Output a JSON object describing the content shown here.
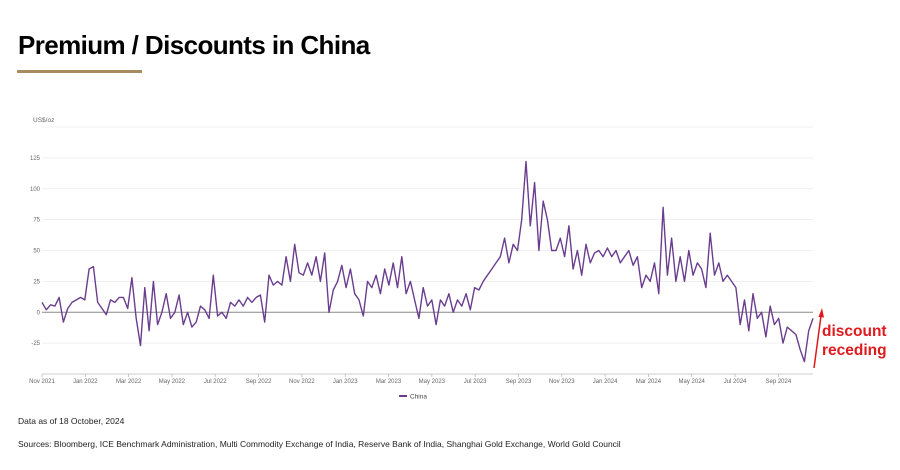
{
  "title": "Premium / Discounts in China",
  "chart_data": {
    "type": "line",
    "title": "Premium / Discounts in China",
    "ylabel": "US$/oz",
    "xlabel": "",
    "ylim": [
      -50,
      150
    ],
    "yticks": [
      -25,
      0,
      25,
      50,
      75,
      100,
      125
    ],
    "ytick_labels": [
      "-25",
      "0",
      "25",
      "50",
      "75",
      "100",
      "125"
    ],
    "xtick_labels": [
      "Nov 2021",
      "Jan 2022",
      "Mar 2022",
      "May 2022",
      "Jul 2022",
      "Sep 2022",
      "Nov 2022",
      "Jan 2023",
      "Mar 2023",
      "May 2023",
      "Jul 2023",
      "Sep 2023",
      "Nov 2023",
      "Jan 2024",
      "Mar 2024",
      "May 2024",
      "Jul 2024",
      "Sep 2024"
    ],
    "x_range_months_from_nov_2021": [
      0,
      35.6
    ],
    "grid": true,
    "legend": "bottom-center",
    "series": [
      {
        "name": "China",
        "color": "#6a3d8f",
        "values": [
          8,
          2,
          6,
          5,
          12,
          -8,
          3,
          8,
          10,
          12,
          10,
          35,
          37,
          8,
          3,
          -2,
          10,
          8,
          12,
          12,
          3,
          28,
          -5,
          -27,
          20,
          -15,
          25,
          -10,
          0,
          15,
          -5,
          0,
          14,
          -10,
          0,
          -12,
          -8,
          5,
          2,
          -5,
          30,
          -3,
          0,
          -5,
          8,
          5,
          10,
          5,
          12,
          8,
          12,
          14,
          -8,
          30,
          22,
          25,
          22,
          45,
          25,
          55,
          32,
          30,
          40,
          30,
          45,
          25,
          48,
          0,
          18,
          25,
          38,
          20,
          35,
          15,
          10,
          -3,
          25,
          20,
          30,
          15,
          35,
          22,
          40,
          20,
          45,
          15,
          25,
          10,
          -5,
          20,
          5,
          10,
          -10,
          10,
          5,
          15,
          0,
          10,
          5,
          15,
          2,
          20,
          18,
          25,
          30,
          35,
          40,
          45,
          60,
          40,
          55,
          50,
          75,
          122,
          70,
          105,
          50,
          90,
          75,
          50,
          50,
          60,
          45,
          70,
          35,
          50,
          30,
          55,
          40,
          48,
          50,
          45,
          52,
          45,
          50,
          40,
          45,
          50,
          38,
          45,
          20,
          30,
          25,
          40,
          15,
          85,
          30,
          60,
          25,
          45,
          25,
          50,
          30,
          40,
          35,
          20,
          64,
          30,
          40,
          25,
          30,
          25,
          20,
          -10,
          10,
          -15,
          15,
          -5,
          0,
          -20,
          5,
          -10,
          -5,
          -25,
          -12,
          -15,
          -18,
          -30,
          -40,
          -15,
          -5
        ]
      }
    ]
  },
  "annotation": {
    "line1": "discount",
    "line2": "receding",
    "color": "#e0191c"
  },
  "footer": {
    "data_as_of": "Data as of 18 October, 2024",
    "sources": "Sources: Bloomberg, ICE Benchmark Administration, Multi Commodity Exchange of India, Reserve Bank of India, Shanghai Gold Exchange, World Gold Council"
  }
}
